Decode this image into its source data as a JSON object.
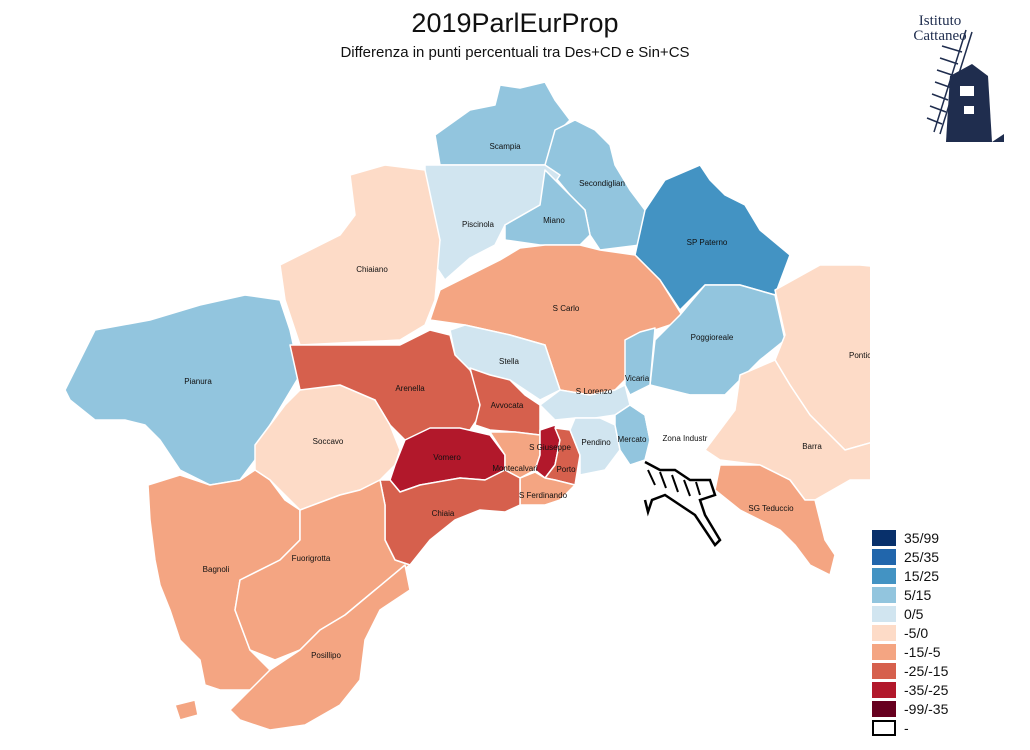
{
  "title": "2019ParlEurProp",
  "subtitle": "Differenza in punti percentuali tra Des+CD e Sin+CS",
  "logo": {
    "line1": "Istituto",
    "line2": "Cattaneo",
    "icon": "windmill-icon"
  },
  "legend": [
    {
      "label": "35/99",
      "color": "#08306b"
    },
    {
      "label": "25/35",
      "color": "#2166ac"
    },
    {
      "label": "15/25",
      "color": "#4393c3"
    },
    {
      "label": "5/15",
      "color": "#92c5de"
    },
    {
      "label": "0/5",
      "color": "#d1e5f0"
    },
    {
      "label": "-5/0",
      "color": "#fddbc7"
    },
    {
      "label": "-15/-5",
      "color": "#f4a582"
    },
    {
      "label": "-25/-15",
      "color": "#d6604d"
    },
    {
      "label": "-35/-25",
      "color": "#b2182b"
    },
    {
      "label": "-99/-35",
      "color": "#67001f"
    },
    {
      "label": "-",
      "color": "#ffffff"
    }
  ],
  "zones": {
    "scampia": {
      "name": "Scampia",
      "class": "5/15"
    },
    "secondigliano": {
      "name": "Secondiglian",
      "class": "5/15"
    },
    "piscinola": {
      "name": "Piscinola",
      "class": "0/5"
    },
    "miano": {
      "name": "Miano",
      "class": "5/15"
    },
    "sp_paterno": {
      "name": "SP Paterno",
      "class": "15/25"
    },
    "chiaiano": {
      "name": "Chiaiano",
      "class": "-5/0"
    },
    "s_carlo": {
      "name": "S Carlo",
      "class": "-15/-5"
    },
    "poggioreale": {
      "name": "Poggioreale",
      "class": "5/15"
    },
    "ponticelli": {
      "name": "Ponticelli",
      "class": "-5/0"
    },
    "pianura": {
      "name": "Pianura",
      "class": "5/15"
    },
    "stella": {
      "name": "Stella",
      "class": "0/5"
    },
    "arenella": {
      "name": "Arenella",
      "class": "-25/-15"
    },
    "avvocata": {
      "name": "Avvocata",
      "class": "-25/-15"
    },
    "s_lorenzo": {
      "name": "S Lorenzo",
      "class": "0/5"
    },
    "vicaria": {
      "name": "Vicaria",
      "class": "5/15"
    },
    "soccavo": {
      "name": "Soccavo",
      "class": "-5/0"
    },
    "vomero": {
      "name": "Vomero",
      "class": "-35/-25"
    },
    "montecalvario": {
      "name": "Montecalvari",
      "class": "-15/-5"
    },
    "s_giuseppe": {
      "name": "S Giuseppe",
      "class": "-35/-25"
    },
    "porto": {
      "name": "Porto",
      "class": "-25/-15"
    },
    "pendino": {
      "name": "Pendino",
      "class": "0/5"
    },
    "mercato": {
      "name": "Mercato",
      "class": "5/15"
    },
    "zona_industriale": {
      "name": "Zona Industr",
      "class": "-"
    },
    "barra": {
      "name": "Barra",
      "class": "-5/0"
    },
    "s_ferdinando": {
      "name": "S Ferdinando",
      "class": "-15/-5"
    },
    "chiaia": {
      "name": "Chiaia",
      "class": "-25/-15"
    },
    "sg_teduccio": {
      "name": "SG Teduccio",
      "class": "-15/-5"
    },
    "bagnoli": {
      "name": "Bagnoli",
      "class": "-15/-5"
    },
    "fuorigrotta": {
      "name": "Fuorigrotta",
      "class": "-15/-5"
    },
    "posillipo": {
      "name": "Posillipo",
      "class": "-15/-5"
    }
  }
}
